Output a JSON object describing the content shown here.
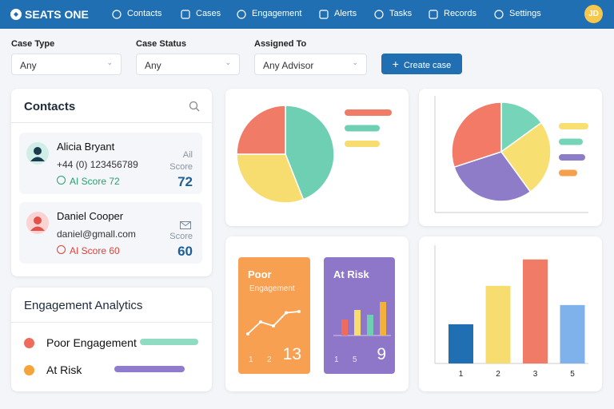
{
  "header": {
    "logo": "SEATS ONE",
    "nav": [
      "Contacts",
      "Cases",
      "Engagement",
      "Alerts",
      "Tasks",
      "Records",
      "Settings"
    ],
    "avatar": "JD"
  },
  "filters": [
    {
      "label": "Case Type",
      "value": "Any"
    },
    {
      "label": "Case Status",
      "value": "Any"
    },
    {
      "label": "Assigned To",
      "value": "Any Advisor"
    }
  ],
  "create_button": "Create case",
  "contacts": {
    "title": "Contacts",
    "items": [
      {
        "name": "Alicia Bryant",
        "detail": "+44 (0) 123456789",
        "ai_score": "AI Score 72",
        "score_caption": [
          "Ail",
          "Score"
        ],
        "score": "72",
        "status_color": "#27a06b",
        "avatar_bg": "#cfeee6",
        "avatar_fg": "#1d3b4f"
      },
      {
        "name": "Daniel Cooper",
        "detail": "daniel@gmall.com",
        "ai_score": "AI Score 60",
        "score_caption": [
          "Score"
        ],
        "score": "60",
        "status_color": "#e0413a",
        "avatar_bg": "#fbd3d3",
        "avatar_fg": "#e0524a"
      }
    ]
  },
  "engagement": {
    "title": "Engagement Analytics",
    "items": [
      {
        "label": "Poor Engagement",
        "dot": "#ef6b5e",
        "bar": "#8fdcc3"
      },
      {
        "label": "At Risk",
        "dot": "#f4a43a",
        "bar": "#8f7ccf"
      }
    ]
  },
  "pie_1": {
    "type": "pie",
    "values": [
      44,
      31,
      25
    ],
    "colors": [
      "#6fcfb3",
      "#f7dc6f",
      "#f07c67"
    ],
    "legend_colors": [
      "#f07c67",
      "#6fcfb3",
      "#f7dc6f"
    ]
  },
  "pie_2": {
    "type": "pie",
    "values": [
      15,
      25,
      30,
      30
    ],
    "colors": [
      "#76d4b8",
      "#f8df72",
      "#8e7cc9",
      "#f27a66"
    ],
    "legend_colors": [
      "#f8df72",
      "#76d4b8",
      "#8e7cc9",
      "#f4a04f"
    ]
  },
  "tiles": [
    {
      "title": "Poor",
      "subtitle": "Engagement",
      "ticks": [
        "1",
        "2"
      ],
      "value": "13",
      "type": "line",
      "values": [
        0,
        3,
        2,
        5.3,
        5.6
      ],
      "bg": "#f8a052"
    },
    {
      "title": "At Risk",
      "ticks": [
        "1",
        "5"
      ],
      "value": "9",
      "type": "bar",
      "values": [
        20,
        32,
        26,
        42
      ],
      "colors": [
        "#ef6b5e",
        "#f7dc6f",
        "#6fcfb3",
        "#f4b13a"
      ],
      "bg": "#8e76c8"
    }
  ],
  "bar_chart": {
    "type": "bar",
    "categories": [
      "1",
      "2",
      "3",
      "5"
    ],
    "values": [
      49,
      97,
      130,
      73
    ],
    "colors": [
      "#1f6fb2",
      "#f7dc6f",
      "#f07c67",
      "#7fb1ea"
    ]
  }
}
